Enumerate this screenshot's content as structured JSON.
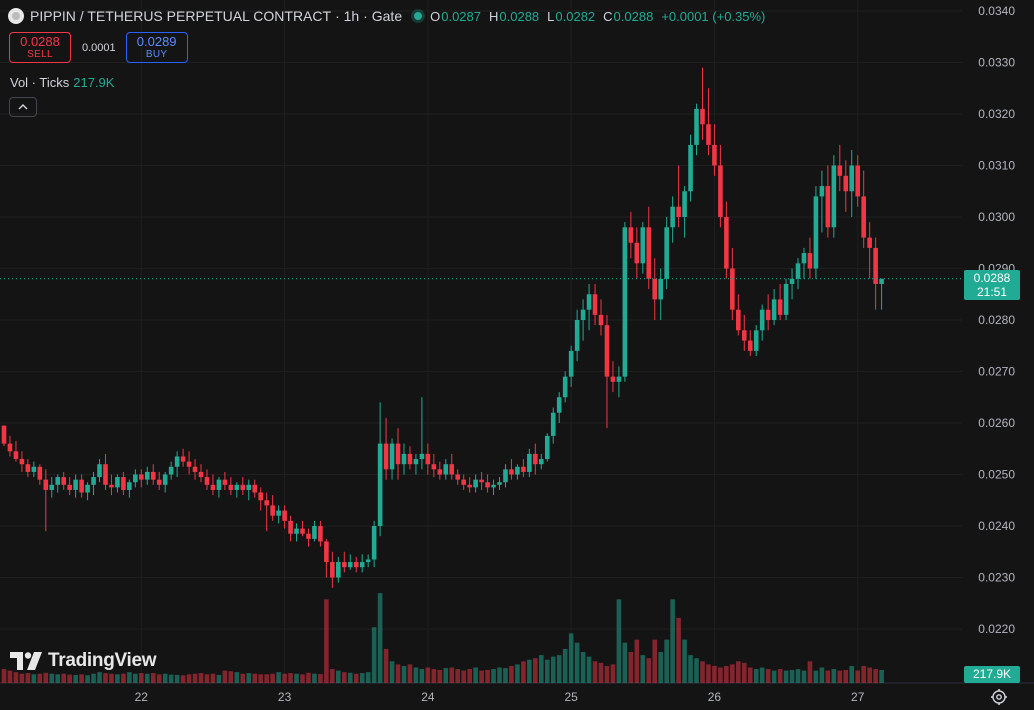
{
  "header": {
    "symbol": "PIPPIN / TETHERUS PERPETUAL CONTRACT",
    "interval": "· 1h ·",
    "exchange": "Gate",
    "o_label": "O",
    "o": "0.0287",
    "h_label": "H",
    "h": "0.0288",
    "l_label": "L",
    "l": "0.0282",
    "c_label": "C",
    "c": "0.0288",
    "change": "+0.0001 (+0.35%)"
  },
  "trade": {
    "sell_price": "0.0288",
    "sell_label": "SELL",
    "spread": "0.0001",
    "buy_price": "0.0289",
    "buy_label": "BUY"
  },
  "volume_legend": {
    "label": "Vol · Ticks",
    "value": "217.9K"
  },
  "watermark": "TradingView",
  "last_price": {
    "price": "0.0288",
    "countdown": "21:51"
  },
  "volume_last": "217.9K",
  "colors": {
    "up": "#22ab94",
    "down": "#f23645",
    "bg": "#141414",
    "grid": "#1f1f1f",
    "text": "#b2b5be"
  },
  "chart_data": {
    "type": "candlestick",
    "interval": "1h",
    "y_ticks": [
      "0.0340",
      "0.0330",
      "0.0320",
      "0.0310",
      "0.0300",
      "0.0290",
      "0.0280",
      "0.0270",
      "0.0260",
      "0.0250",
      "0.0240",
      "0.0230",
      "0.0220"
    ],
    "ylim": [
      0.0215,
      0.0342
    ],
    "x_ticks": [
      {
        "label": "22",
        "index": 23
      },
      {
        "label": "23",
        "index": 47
      },
      {
        "label": "24",
        "index": 71
      },
      {
        "label": "25",
        "index": 95
      },
      {
        "label": "26",
        "index": 119
      },
      {
        "label": "27",
        "index": 143
      }
    ],
    "ohlc": [
      [
        0.02595,
        0.02595,
        0.02555,
        0.0256
      ],
      [
        0.0256,
        0.02575,
        0.02535,
        0.02545
      ],
      [
        0.02545,
        0.02565,
        0.02525,
        0.0253
      ],
      [
        0.0253,
        0.02545,
        0.02505,
        0.0252
      ],
      [
        0.0252,
        0.0253,
        0.02495,
        0.02505
      ],
      [
        0.02505,
        0.02525,
        0.02495,
        0.02515
      ],
      [
        0.02515,
        0.0252,
        0.0248,
        0.0249
      ],
      [
        0.0249,
        0.0251,
        0.0239,
        0.0247
      ],
      [
        0.0247,
        0.02495,
        0.02455,
        0.0248
      ],
      [
        0.0248,
        0.025,
        0.02465,
        0.02495
      ],
      [
        0.02495,
        0.02505,
        0.0247,
        0.0248
      ],
      [
        0.0248,
        0.02495,
        0.0246,
        0.0247
      ],
      [
        0.0247,
        0.025,
        0.02455,
        0.0249
      ],
      [
        0.0249,
        0.025,
        0.02455,
        0.02465
      ],
      [
        0.02465,
        0.02485,
        0.0245,
        0.0248
      ],
      [
        0.0248,
        0.02505,
        0.0246,
        0.02495
      ],
      [
        0.02495,
        0.0253,
        0.02485,
        0.0252
      ],
      [
        0.0252,
        0.0254,
        0.0247,
        0.0248
      ],
      [
        0.0248,
        0.025,
        0.0246,
        0.02475
      ],
      [
        0.02475,
        0.025,
        0.02465,
        0.02495
      ],
      [
        0.02495,
        0.02505,
        0.0246,
        0.0247
      ],
      [
        0.0247,
        0.0249,
        0.02455,
        0.02485
      ],
      [
        0.02485,
        0.0251,
        0.02475,
        0.025
      ],
      [
        0.025,
        0.0251,
        0.02475,
        0.0249
      ],
      [
        0.0249,
        0.02515,
        0.0248,
        0.02505
      ],
      [
        0.02505,
        0.0252,
        0.0248,
        0.0249
      ],
      [
        0.0249,
        0.02505,
        0.0247,
        0.0248
      ],
      [
        0.0248,
        0.02505,
        0.02465,
        0.025
      ],
      [
        0.025,
        0.02525,
        0.0249,
        0.02515
      ],
      [
        0.02515,
        0.02545,
        0.02495,
        0.02535
      ],
      [
        0.02535,
        0.0255,
        0.02515,
        0.02525
      ],
      [
        0.02525,
        0.02545,
        0.025,
        0.02515
      ],
      [
        0.02515,
        0.0253,
        0.0249,
        0.02505
      ],
      [
        0.02505,
        0.0252,
        0.02485,
        0.02495
      ],
      [
        0.02495,
        0.0251,
        0.0247,
        0.0248
      ],
      [
        0.0248,
        0.025,
        0.0246,
        0.0247
      ],
      [
        0.0247,
        0.02495,
        0.02455,
        0.0249
      ],
      [
        0.0249,
        0.02505,
        0.0247,
        0.0248
      ],
      [
        0.0248,
        0.02495,
        0.0246,
        0.0247
      ],
      [
        0.0247,
        0.02485,
        0.02455,
        0.0248
      ],
      [
        0.0248,
        0.02495,
        0.0246,
        0.0247
      ],
      [
        0.0247,
        0.0249,
        0.0245,
        0.0248
      ],
      [
        0.0248,
        0.0249,
        0.02455,
        0.02465
      ],
      [
        0.02465,
        0.02475,
        0.0243,
        0.0245
      ],
      [
        0.0245,
        0.02465,
        0.0239,
        0.0244
      ],
      [
        0.0244,
        0.0246,
        0.0241,
        0.0242
      ],
      [
        0.0242,
        0.0244,
        0.02405,
        0.0243
      ],
      [
        0.0243,
        0.0244,
        0.02395,
        0.0241
      ],
      [
        0.0241,
        0.0242,
        0.0237,
        0.02385
      ],
      [
        0.02385,
        0.02405,
        0.0237,
        0.02395
      ],
      [
        0.02395,
        0.0241,
        0.0238,
        0.02385
      ],
      [
        0.02385,
        0.02395,
        0.0236,
        0.02375
      ],
      [
        0.02375,
        0.0241,
        0.0237,
        0.024
      ],
      [
        0.024,
        0.0241,
        0.0236,
        0.0237
      ],
      [
        0.0237,
        0.02375,
        0.023,
        0.0233
      ],
      [
        0.0233,
        0.0235,
        0.0228,
        0.023
      ],
      [
        0.023,
        0.0234,
        0.0229,
        0.0233
      ],
      [
        0.0233,
        0.0235,
        0.0231,
        0.0232
      ],
      [
        0.0232,
        0.02345,
        0.02315,
        0.0233
      ],
      [
        0.0233,
        0.0234,
        0.0231,
        0.0232
      ],
      [
        0.0232,
        0.02345,
        0.0231,
        0.0233
      ],
      [
        0.0233,
        0.02345,
        0.0232,
        0.02335
      ],
      [
        0.02335,
        0.0241,
        0.0232,
        0.024
      ],
      [
        0.024,
        0.0264,
        0.0238,
        0.0256
      ],
      [
        0.0256,
        0.0261,
        0.0249,
        0.0251
      ],
      [
        0.0251,
        0.0257,
        0.0249,
        0.0256
      ],
      [
        0.0256,
        0.0259,
        0.0249,
        0.0252
      ],
      [
        0.0252,
        0.0256,
        0.025,
        0.0254
      ],
      [
        0.0254,
        0.02555,
        0.0251,
        0.0252
      ],
      [
        0.0252,
        0.0254,
        0.025,
        0.0253
      ],
      [
        0.0253,
        0.0265,
        0.0251,
        0.0254
      ],
      [
        0.0254,
        0.0256,
        0.025,
        0.0252
      ],
      [
        0.0252,
        0.0254,
        0.02495,
        0.0251
      ],
      [
        0.0251,
        0.02525,
        0.0249,
        0.025
      ],
      [
        0.025,
        0.0253,
        0.0249,
        0.0252
      ],
      [
        0.0252,
        0.0254,
        0.0249,
        0.025
      ],
      [
        0.025,
        0.0251,
        0.0248,
        0.0249
      ],
      [
        0.0249,
        0.025,
        0.0247,
        0.0248
      ],
      [
        0.0248,
        0.02495,
        0.02465,
        0.02475
      ],
      [
        0.02475,
        0.025,
        0.02465,
        0.0249
      ],
      [
        0.0249,
        0.02505,
        0.0247,
        0.02485
      ],
      [
        0.02485,
        0.025,
        0.02465,
        0.02475
      ],
      [
        0.02475,
        0.0249,
        0.0246,
        0.0248
      ],
      [
        0.0248,
        0.02495,
        0.0247,
        0.02485
      ],
      [
        0.02485,
        0.0252,
        0.02475,
        0.0251
      ],
      [
        0.0251,
        0.0253,
        0.0249,
        0.025
      ],
      [
        0.025,
        0.0252,
        0.0249,
        0.02515
      ],
      [
        0.02515,
        0.0253,
        0.02495,
        0.02505
      ],
      [
        0.02505,
        0.0255,
        0.02495,
        0.0254
      ],
      [
        0.0254,
        0.0256,
        0.025,
        0.0252
      ],
      [
        0.0252,
        0.0254,
        0.0251,
        0.0253
      ],
      [
        0.0253,
        0.0258,
        0.02525,
        0.02575
      ],
      [
        0.02575,
        0.0263,
        0.0256,
        0.0262
      ],
      [
        0.0262,
        0.0266,
        0.026,
        0.0265
      ],
      [
        0.0265,
        0.027,
        0.0264,
        0.0269
      ],
      [
        0.0269,
        0.0275,
        0.0267,
        0.0274
      ],
      [
        0.0274,
        0.0282,
        0.0272,
        0.028
      ],
      [
        0.028,
        0.0284,
        0.0276,
        0.0282
      ],
      [
        0.0282,
        0.0287,
        0.0278,
        0.0285
      ],
      [
        0.0285,
        0.0287,
        0.0279,
        0.0281
      ],
      [
        0.0281,
        0.0284,
        0.0277,
        0.0279
      ],
      [
        0.0279,
        0.0281,
        0.0259,
        0.0269
      ],
      [
        0.0269,
        0.0272,
        0.0266,
        0.0268
      ],
      [
        0.0268,
        0.0271,
        0.0265,
        0.0269
      ],
      [
        0.0269,
        0.0299,
        0.0268,
        0.0298
      ],
      [
        0.0298,
        0.0301,
        0.0292,
        0.0295
      ],
      [
        0.0295,
        0.0298,
        0.0288,
        0.0291
      ],
      [
        0.0291,
        0.0299,
        0.0289,
        0.0298
      ],
      [
        0.0298,
        0.0302,
        0.0286,
        0.0288
      ],
      [
        0.0288,
        0.0292,
        0.028,
        0.0284
      ],
      [
        0.0284,
        0.029,
        0.028,
        0.0288
      ],
      [
        0.0288,
        0.03,
        0.0286,
        0.0298
      ],
      [
        0.0298,
        0.0304,
        0.0295,
        0.0302
      ],
      [
        0.0302,
        0.031,
        0.0298,
        0.03
      ],
      [
        0.03,
        0.0306,
        0.0296,
        0.0305
      ],
      [
        0.0305,
        0.0316,
        0.0303,
        0.0314
      ],
      [
        0.0314,
        0.0322,
        0.0312,
        0.0321
      ],
      [
        0.0321,
        0.0329,
        0.0315,
        0.0318
      ],
      [
        0.0318,
        0.0325,
        0.0312,
        0.0314
      ],
      [
        0.0314,
        0.0318,
        0.0308,
        0.031
      ],
      [
        0.031,
        0.0314,
        0.0298,
        0.03
      ],
      [
        0.03,
        0.0303,
        0.0288,
        0.029
      ],
      [
        0.029,
        0.0294,
        0.028,
        0.0282
      ],
      [
        0.0282,
        0.0285,
        0.0277,
        0.0278
      ],
      [
        0.0278,
        0.0281,
        0.0274,
        0.0276
      ],
      [
        0.0276,
        0.0278,
        0.0273,
        0.0274
      ],
      [
        0.0274,
        0.0279,
        0.0273,
        0.0278
      ],
      [
        0.0278,
        0.0283,
        0.0276,
        0.0282
      ],
      [
        0.0282,
        0.0285,
        0.0278,
        0.028
      ],
      [
        0.028,
        0.0286,
        0.0279,
        0.0284
      ],
      [
        0.0284,
        0.0287,
        0.028,
        0.0281
      ],
      [
        0.0281,
        0.0288,
        0.028,
        0.0287
      ],
      [
        0.0287,
        0.029,
        0.0284,
        0.0288
      ],
      [
        0.0288,
        0.0292,
        0.0286,
        0.0291
      ],
      [
        0.0291,
        0.0294,
        0.0288,
        0.0293
      ],
      [
        0.0293,
        0.0296,
        0.0288,
        0.029
      ],
      [
        0.029,
        0.0306,
        0.0288,
        0.0304
      ],
      [
        0.0304,
        0.0309,
        0.0297,
        0.0306
      ],
      [
        0.0306,
        0.031,
        0.0296,
        0.0298
      ],
      [
        0.0298,
        0.0312,
        0.0296,
        0.031
      ],
      [
        0.031,
        0.0314,
        0.0305,
        0.0308
      ],
      [
        0.0308,
        0.0311,
        0.0301,
        0.0305
      ],
      [
        0.0305,
        0.0313,
        0.03,
        0.031
      ],
      [
        0.031,
        0.0312,
        0.0302,
        0.0304
      ],
      [
        0.0304,
        0.0309,
        0.0294,
        0.0296
      ],
      [
        0.0296,
        0.0299,
        0.0288,
        0.0294
      ],
      [
        0.0294,
        0.0296,
        0.0282,
        0.0287
      ],
      [
        0.0287,
        0.0288,
        0.0282,
        0.0288
      ]
    ],
    "volume": [
      0.45,
      0.4,
      0.35,
      0.3,
      0.32,
      0.28,
      0.3,
      0.33,
      0.3,
      0.28,
      0.3,
      0.27,
      0.26,
      0.28,
      0.25,
      0.3,
      0.35,
      0.32,
      0.3,
      0.28,
      0.3,
      0.35,
      0.3,
      0.32,
      0.3,
      0.32,
      0.28,
      0.3,
      0.27,
      0.26,
      0.25,
      0.28,
      0.3,
      0.32,
      0.28,
      0.3,
      0.26,
      0.4,
      0.38,
      0.35,
      0.3,
      0.32,
      0.3,
      0.28,
      0.28,
      0.3,
      0.35,
      0.3,
      0.32,
      0.3,
      0.28,
      0.33,
      0.3,
      0.29,
      2.7,
      0.45,
      0.4,
      0.35,
      0.33,
      0.3,
      0.32,
      0.35,
      1.8,
      2.9,
      1.1,
      0.7,
      0.6,
      0.55,
      0.6,
      0.5,
      0.45,
      0.5,
      0.45,
      0.42,
      0.48,
      0.5,
      0.45,
      0.4,
      0.45,
      0.5,
      0.4,
      0.42,
      0.45,
      0.5,
      0.48,
      0.55,
      0.6,
      0.7,
      0.75,
      0.8,
      0.9,
      0.75,
      0.85,
      0.9,
      1.1,
      1.6,
      1.3,
      1.0,
      0.85,
      0.7,
      0.65,
      0.55,
      0.6,
      2.7,
      1.3,
      1.0,
      1.4,
      0.9,
      0.8,
      1.4,
      1.0,
      1.4,
      2.7,
      2.1,
      1.4,
      0.9,
      0.8,
      0.7,
      0.6,
      0.55,
      0.5,
      0.55,
      0.6,
      0.7,
      0.65,
      0.5,
      0.45,
      0.5,
      0.45,
      0.4,
      0.45,
      0.4,
      0.42,
      0.45,
      0.4,
      0.7,
      0.4,
      0.5,
      0.4,
      0.45,
      0.4,
      0.42,
      0.55,
      0.4,
      0.55,
      0.5,
      0.45,
      0.42
    ]
  }
}
